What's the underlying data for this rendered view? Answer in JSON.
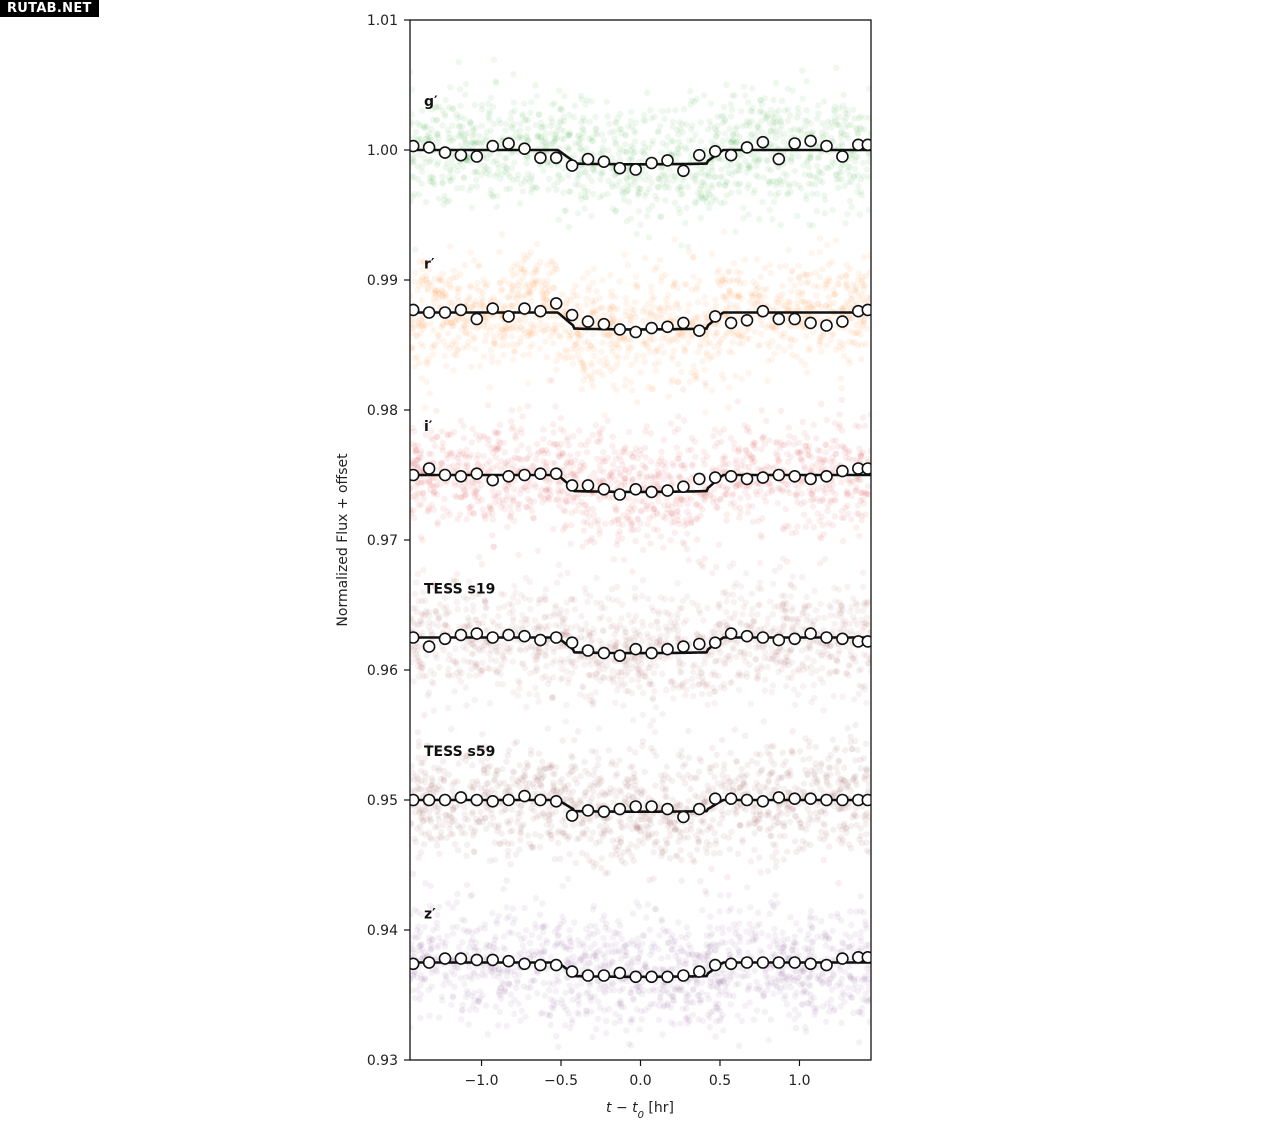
{
  "watermark": "RUTAB.NET",
  "chart_data": {
    "type": "scatter",
    "title": "",
    "xlabel": "t − t0 [hr]",
    "xlabel_main": "t − t",
    "xlabel_sub": "0",
    "xlabel_unit": " [hr]",
    "ylabel": "Normalized Flux + offset",
    "xlim": [
      -1.45,
      1.45
    ],
    "ylim": [
      0.93,
      1.01
    ],
    "xticks": [
      -1.0,
      -0.5,
      0.0,
      0.5,
      1.0
    ],
    "xtick_labels": [
      "−1.0",
      "−0.5",
      "0.0",
      "0.5",
      "1.0"
    ],
    "yticks": [
      0.93,
      0.94,
      0.95,
      0.96,
      0.97,
      0.98,
      0.99,
      1.0,
      1.01
    ],
    "ytick_labels": [
      "0.93",
      "0.94",
      "0.95",
      "0.96",
      "0.97",
      "0.98",
      "0.99",
      "1.00",
      "1.01"
    ],
    "grid": false,
    "binned_x": [
      -1.43,
      -1.33,
      -1.23,
      -1.13,
      -1.03,
      -0.93,
      -0.83,
      -0.73,
      -0.63,
      -0.53,
      -0.43,
      -0.33,
      -0.23,
      -0.13,
      -0.03,
      0.07,
      0.17,
      0.27,
      0.37,
      0.47,
      0.57,
      0.67,
      0.77,
      0.87,
      0.97,
      1.07,
      1.17,
      1.27,
      1.37,
      1.43
    ],
    "series": [
      {
        "name": "g′",
        "color": "#2ca02c",
        "baseline": 1.0,
        "depth": 0.0011,
        "binned_y": [
          1.0003,
          1.0002,
          0.9998,
          0.9996,
          0.9995,
          1.0003,
          1.0005,
          1.0001,
          0.9994,
          0.9994,
          0.9988,
          0.9993,
          0.9991,
          0.9986,
          0.9985,
          0.999,
          0.9992,
          0.9984,
          0.9996,
          0.9999,
          0.9996,
          1.0002,
          1.0006,
          0.9993,
          1.0005,
          1.0007,
          1.0003,
          0.9995,
          1.0004,
          1.0004
        ]
      },
      {
        "name": "r′",
        "color": "#ff7f0e",
        "baseline": 0.9875,
        "depth": 0.0013,
        "binned_y": [
          0.9877,
          0.9875,
          0.9875,
          0.9877,
          0.987,
          0.9878,
          0.9872,
          0.9878,
          0.9876,
          0.9882,
          0.9873,
          0.9868,
          0.9866,
          0.9862,
          0.986,
          0.9863,
          0.9864,
          0.9867,
          0.9861,
          0.9872,
          0.9867,
          0.9869,
          0.9876,
          0.987,
          0.987,
          0.9867,
          0.9865,
          0.9868,
          0.9876,
          0.9877
        ]
      },
      {
        "name": "i′",
        "color": "#d62728",
        "baseline": 0.975,
        "depth": 0.0013,
        "binned_y": [
          0.975,
          0.9755,
          0.975,
          0.9749,
          0.9751,
          0.9746,
          0.9749,
          0.975,
          0.9751,
          0.9751,
          0.9742,
          0.9742,
          0.9739,
          0.9735,
          0.9739,
          0.9737,
          0.9738,
          0.9741,
          0.9747,
          0.9748,
          0.9749,
          0.9747,
          0.9748,
          0.975,
          0.9749,
          0.9747,
          0.9749,
          0.9753,
          0.9755,
          0.9755
        ]
      },
      {
        "name": "TESS s19",
        "color": "#a0504a",
        "baseline": 0.9625,
        "depth": 0.0012,
        "binned_y": [
          0.9625,
          0.9618,
          0.9624,
          0.9627,
          0.9628,
          0.9625,
          0.9627,
          0.9626,
          0.9623,
          0.9625,
          0.9621,
          0.9615,
          0.9613,
          0.9611,
          0.9616,
          0.9613,
          0.9616,
          0.9618,
          0.962,
          0.9621,
          0.9628,
          0.9626,
          0.9625,
          0.9623,
          0.9624,
          0.9628,
          0.9625,
          0.9624,
          0.9622,
          0.9622
        ]
      },
      {
        "name": "TESS s59",
        "color": "#8c3b3b",
        "baseline": 0.95,
        "depth": 0.0009,
        "binned_y": [
          0.95,
          0.95,
          0.95,
          0.9502,
          0.95,
          0.9499,
          0.95,
          0.9503,
          0.95,
          0.9499,
          0.9488,
          0.9492,
          0.9491,
          0.9493,
          0.9495,
          0.9495,
          0.9493,
          0.9487,
          0.9493,
          0.9501,
          0.9501,
          0.95,
          0.9499,
          0.9502,
          0.9501,
          0.9501,
          0.95,
          0.95,
          0.95,
          0.95
        ]
      },
      {
        "name": "z′",
        "color": "#7b3f8c",
        "baseline": 0.9375,
        "depth": 0.0011,
        "binned_y": [
          0.9374,
          0.9375,
          0.9378,
          0.9378,
          0.9377,
          0.9377,
          0.9376,
          0.9374,
          0.9373,
          0.9373,
          0.9368,
          0.9365,
          0.9365,
          0.9367,
          0.9364,
          0.9364,
          0.9364,
          0.9365,
          0.9368,
          0.9373,
          0.9374,
          0.9375,
          0.9375,
          0.9375,
          0.9375,
          0.9374,
          0.9373,
          0.9378,
          0.9379,
          0.9379
        ]
      }
    ],
    "model": {
      "t_ingress_start": -0.52,
      "t_ingress_end": -0.42,
      "t_egress_start": 0.42,
      "t_egress_end": 0.52
    }
  }
}
